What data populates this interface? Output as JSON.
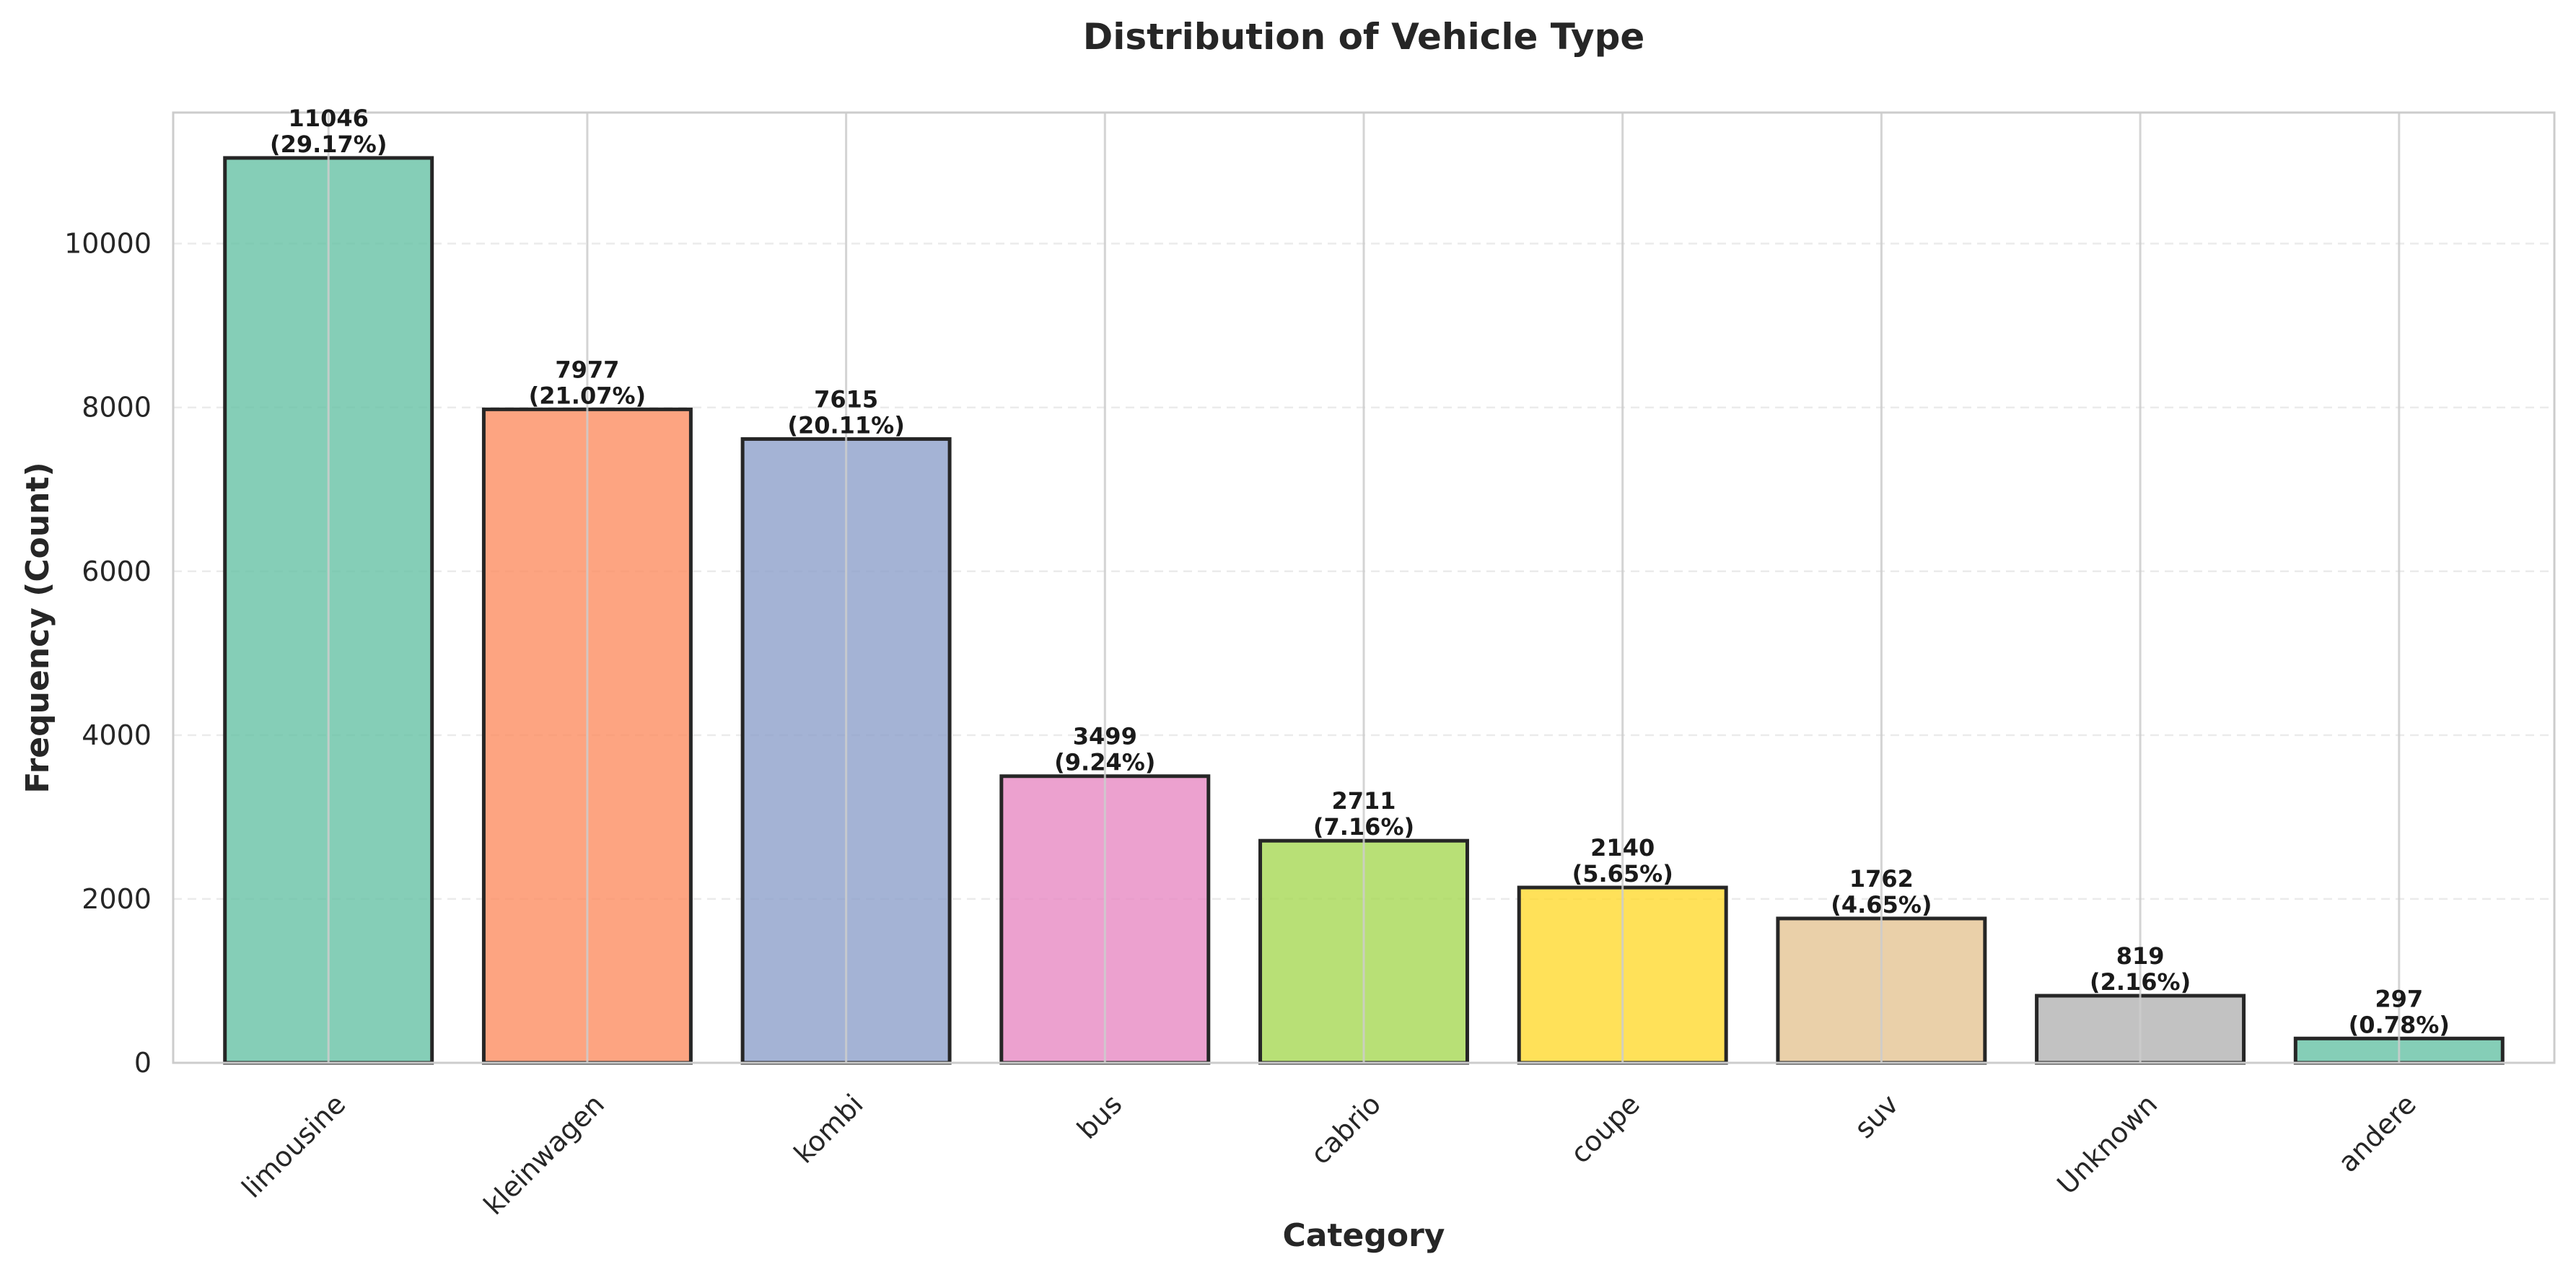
{
  "chart_data": {
    "type": "bar",
    "title": "Distribution of Vehicle Type",
    "xlabel": "Category",
    "ylabel": "Frequency (Count)",
    "categories": [
      "limousine",
      "kleinwagen",
      "kombi",
      "bus",
      "cabrio",
      "coupe",
      "suv",
      "Unknown",
      "andere"
    ],
    "values": [
      11046,
      7977,
      7615,
      3499,
      2711,
      2140,
      1762,
      819,
      297
    ],
    "labels": [
      [
        "11046",
        "(29.17%)"
      ],
      [
        "7977",
        "(21.07%)"
      ],
      [
        "7615",
        "(20.11%)"
      ],
      [
        "3499",
        "(9.24%)"
      ],
      [
        "2711",
        "(7.16%)"
      ],
      [
        "2140",
        "(5.65%)"
      ],
      [
        "1762",
        "(4.65%)"
      ],
      [
        "819",
        "(2.16%)"
      ],
      [
        "297",
        "(0.78%)"
      ]
    ],
    "colors": [
      "#66c2a5",
      "#fc8d62",
      "#8da0cb",
      "#e78ac3",
      "#a6d854",
      "#ffd92f",
      "#e5c494",
      "#b3b3b3",
      "#66c2a5"
    ],
    "bar_opacity": 0.8,
    "bar_edge_color": "#262626",
    "yticks": [
      0,
      2000,
      4000,
      6000,
      8000,
      10000
    ],
    "ylim": [
      0,
      11600
    ],
    "grid": true
  }
}
